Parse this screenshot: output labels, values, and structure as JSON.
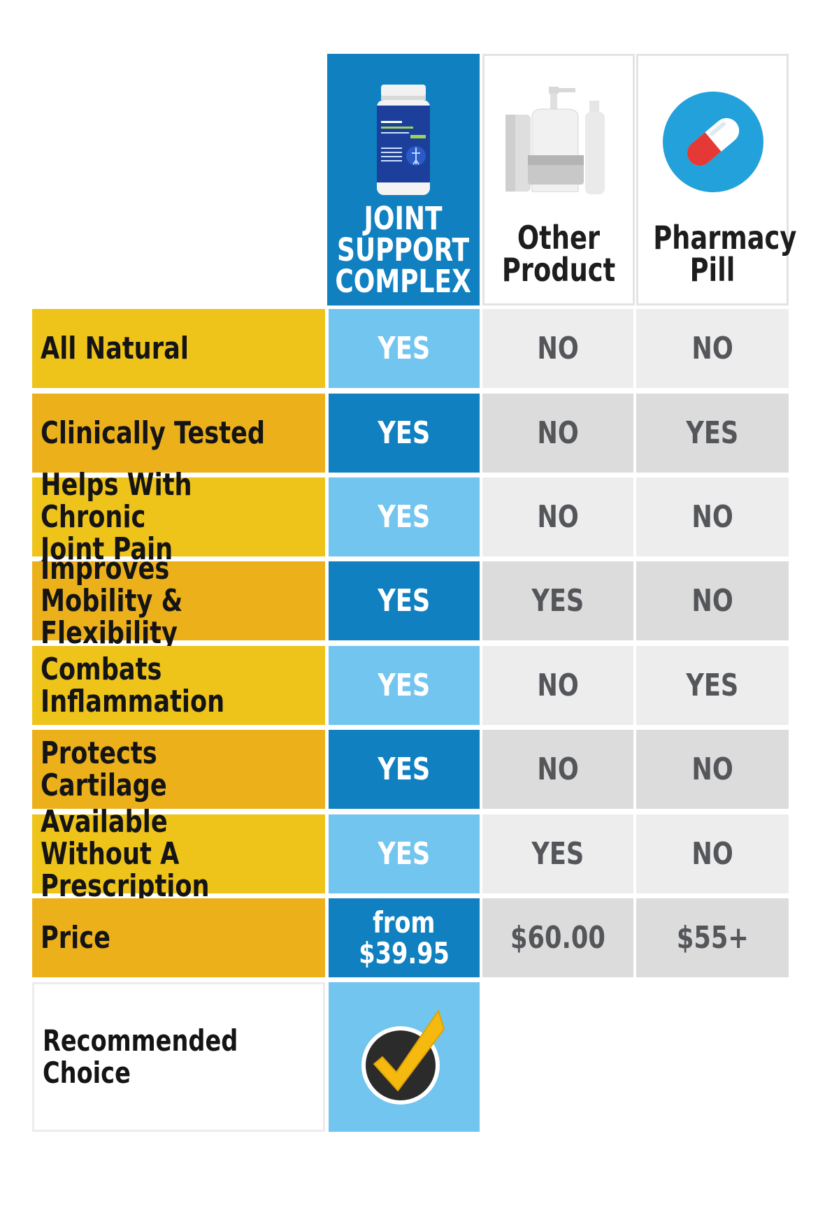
{
  "columns": [
    {
      "title": "JOINT SUPPORT COMPLEX",
      "title_lines": [
        "JOINT",
        "SUPPORT",
        "COMPLEX"
      ]
    },
    {
      "title": "Other Product",
      "title_lines": [
        "Other",
        "Product"
      ]
    },
    {
      "title": "Pharmacy Pill",
      "title_lines": [
        "Pharmacy",
        "Pill"
      ]
    }
  ],
  "product_label": {
    "brand": "ARTHRO MD+",
    "name": "Joint Support Complex"
  },
  "rows": [
    {
      "feature": "All Natural",
      "values": [
        "YES",
        "NO",
        "NO"
      ]
    },
    {
      "feature": "Clinically Tested",
      "values": [
        "YES",
        "NO",
        "YES"
      ]
    },
    {
      "feature": "Helps With Chronic Joint Pain",
      "feature_lines": [
        "Helps With Chronic",
        "Joint Pain"
      ],
      "values": [
        "YES",
        "NO",
        "NO"
      ]
    },
    {
      "feature": "Improves Mobility & Flexibility",
      "feature_lines": [
        "Improves Mobility &",
        "Flexibility"
      ],
      "values": [
        "YES",
        "YES",
        "NO"
      ]
    },
    {
      "feature": "Combats Inflammation",
      "values": [
        "YES",
        "NO",
        "YES"
      ]
    },
    {
      "feature": "Protects Cartilage",
      "values": [
        "YES",
        "NO",
        "NO"
      ]
    },
    {
      "feature": "Available Without A Prescription",
      "feature_lines": [
        "Available Without A",
        "Prescription"
      ],
      "values": [
        "YES",
        "YES",
        "NO"
      ]
    },
    {
      "feature": "Price",
      "values": [
        "from $39.95",
        "$60.00",
        "$55+"
      ],
      "value_lines_0": [
        "from",
        "$39.95"
      ]
    }
  ],
  "recommended": {
    "label": "Recommended Choice",
    "icon": "checkmark-badge-icon"
  },
  "colors": {
    "brand_blue": "#1080c0",
    "light_blue": "#72c5ef",
    "yellow": "#eec31a",
    "amber": "#ecb01b",
    "gray_light": "#ededed",
    "gray_dark": "#dcdcdc",
    "check_gold": "#f5b90f"
  }
}
